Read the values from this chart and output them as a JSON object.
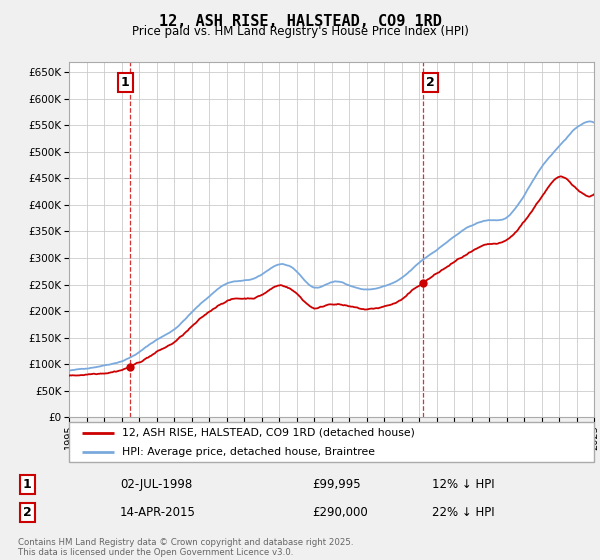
{
  "title": "12, ASH RISE, HALSTEAD, CO9 1RD",
  "subtitle": "Price paid vs. HM Land Registry's House Price Index (HPI)",
  "bg_color": "#f0f0f0",
  "plot_bg_color": "#ffffff",
  "grid_color": "#cccccc",
  "hpi_color": "#7aaadd",
  "price_color": "#cc0000",
  "ylim": [
    0,
    670000
  ],
  "yticks": [
    0,
    50000,
    100000,
    150000,
    200000,
    250000,
    300000,
    350000,
    400000,
    450000,
    500000,
    550000,
    600000,
    650000
  ],
  "ytick_labels": [
    "£0",
    "£50K",
    "£100K",
    "£150K",
    "£200K",
    "£250K",
    "£300K",
    "£350K",
    "£400K",
    "£450K",
    "£500K",
    "£550K",
    "£600K",
    "£650K"
  ],
  "sale1_label": "1",
  "sale2_label": "2",
  "sale1_date": "02-JUL-1998",
  "sale1_price": "£99,995",
  "sale1_hpi": "12% ↓ HPI",
  "sale2_date": "14-APR-2015",
  "sale2_price": "£290,000",
  "sale2_hpi": "22% ↓ HPI",
  "legend_label1": "12, ASH RISE, HALSTEAD, CO9 1RD (detached house)",
  "legend_label2": "HPI: Average price, detached house, Braintree",
  "footnote": "Contains HM Land Registry data © Crown copyright and database right 2025.\nThis data is licensed under the Open Government Licence v3.0.",
  "marker1_year": 1998.5,
  "marker2_year": 2015.25,
  "marker1_price": 99995,
  "marker2_price": 290000,
  "hpi_data_years": [
    1995,
    1996,
    1997,
    1998,
    1999,
    2000,
    2001,
    2002,
    2003,
    2004,
    2005,
    2006,
    2007,
    2008,
    2009,
    2010,
    2011,
    2012,
    2013,
    2014,
    2015,
    2016,
    2017,
    2018,
    2019,
    2020,
    2021,
    2022,
    2023,
    2024,
    2025
  ],
  "hpi_data_values": [
    88000,
    92000,
    99000,
    108000,
    125000,
    148000,
    168000,
    200000,
    230000,
    255000,
    260000,
    270000,
    290000,
    275000,
    245000,
    255000,
    250000,
    242000,
    248000,
    262000,
    290000,
    315000,
    340000,
    360000,
    370000,
    375000,
    415000,
    470000,
    510000,
    545000,
    555000
  ],
  "price_data_years": [
    1995,
    1996,
    1997,
    1998,
    1999,
    2000,
    2001,
    2002,
    2003,
    2004,
    2005,
    2006,
    2007,
    2008,
    2009,
    2010,
    2011,
    2012,
    2013,
    2014,
    2015,
    2016,
    2017,
    2018,
    2019,
    2020,
    2021,
    2022,
    2023,
    2024,
    2025
  ],
  "price_data_values": [
    78000,
    82000,
    88000,
    96000,
    110000,
    130000,
    148000,
    176000,
    202000,
    225000,
    230000,
    238000,
    256000,
    242000,
    216000,
    225000,
    220000,
    213000,
    218000,
    231000,
    256000,
    278000,
    299000,
    317000,
    326000,
    331000,
    366000,
    414000,
    449000,
    430000,
    420000
  ]
}
